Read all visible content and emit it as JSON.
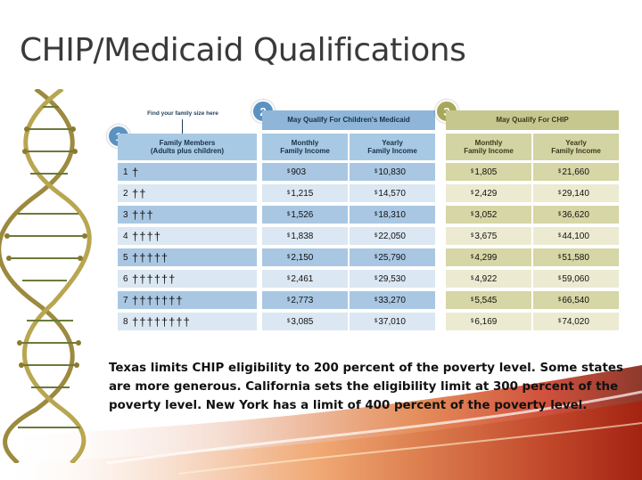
{
  "slide": {
    "title": "CHIP/Medicaid Qualifications",
    "paragraph": "Texas limits CHIP eligibility to 200 percent of the poverty level.  Some states are more generous.  California sets the eligibility limit at 300 percent of the poverty level.  New York has a limit of 400 percent of the poverty level."
  },
  "table": {
    "find_label": "Find your family size here",
    "section1": {
      "badge": "1",
      "header": "Family Members\n(Adults plus children)"
    },
    "section2": {
      "badge": "2",
      "title": "May Qualify For Children's Medicaid",
      "col_monthly": "Monthly\nFamily Income",
      "col_yearly": "Yearly\nFamily Income"
    },
    "section3": {
      "badge": "3",
      "title": "May Qualify For CHIP",
      "col_monthly": "Monthly\nFamily Income",
      "col_yearly": "Yearly\nFamily Income"
    },
    "currency_symbol": "$",
    "person_icon": "person-icon",
    "rows": [
      {
        "size": "1",
        "people": "†",
        "med_monthly": "903",
        "med_yearly": "10,830",
        "chip_monthly": "1,805",
        "chip_yearly": "21,660"
      },
      {
        "size": "2",
        "people": "††",
        "med_monthly": "1,215",
        "med_yearly": "14,570",
        "chip_monthly": "2,429",
        "chip_yearly": "29,140"
      },
      {
        "size": "3",
        "people": "†††",
        "med_monthly": "1,526",
        "med_yearly": "18,310",
        "chip_monthly": "3,052",
        "chip_yearly": "36,620"
      },
      {
        "size": "4",
        "people": "††††",
        "med_monthly": "1,838",
        "med_yearly": "22,050",
        "chip_monthly": "3,675",
        "chip_yearly": "44,100"
      },
      {
        "size": "5",
        "people": "†††††",
        "med_monthly": "2,150",
        "med_yearly": "25,790",
        "chip_monthly": "4,299",
        "chip_yearly": "51,580"
      },
      {
        "size": "6",
        "people": "††††††",
        "med_monthly": "2,461",
        "med_yearly": "29,530",
        "chip_monthly": "4,922",
        "chip_yearly": "59,060"
      },
      {
        "size": "7",
        "people": "†††††††",
        "med_monthly": "2,773",
        "med_yearly": "33,270",
        "chip_monthly": "5,545",
        "chip_yearly": "66,540"
      },
      {
        "size": "8",
        "people": "††††††††",
        "med_monthly": "3,085",
        "med_yearly": "37,010",
        "chip_monthly": "6,169",
        "chip_yearly": "74,020"
      }
    ]
  },
  "colors": {
    "blue_band_dark": "#a9c7e2",
    "blue_band_light": "#dbe7f2",
    "olive_band_dark": "#d6d6a6",
    "olive_band_light": "#ecebd2",
    "badge_blue": "#5a92c2",
    "badge_olive": "#a7a75a"
  }
}
